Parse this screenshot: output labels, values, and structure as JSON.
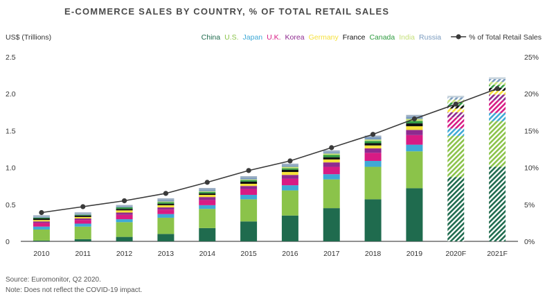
{
  "chart_data": {
    "type": "bar",
    "title": "E-COMMERCE SALES BY COUNTRY, % OF TOTAL RETAIL SALES",
    "ylabel_left": "US$ (Trillions)",
    "ylabel_right": "",
    "ylim_left": [
      0,
      2.5
    ],
    "ylim_right": [
      0,
      25
    ],
    "yticks_left": [
      "0",
      "0.5",
      "1.0",
      "1.5",
      "2.0",
      "2.5"
    ],
    "yticks_right": [
      "0%",
      "5%",
      "10%",
      "15%",
      "20%",
      "25%"
    ],
    "categories": [
      "2010",
      "2011",
      "2012",
      "2013",
      "2014",
      "2015",
      "2016",
      "2017",
      "2018",
      "2019",
      "2020F",
      "2021F"
    ],
    "forecast": [
      false,
      false,
      false,
      false,
      false,
      false,
      false,
      false,
      false,
      false,
      true,
      true
    ],
    "series": [
      {
        "name": "China",
        "color": "#1f6b4e",
        "values": [
          0.01,
          0.03,
          0.06,
          0.1,
          0.18,
          0.27,
          0.35,
          0.45,
          0.57,
          0.72,
          0.87,
          1.01
        ]
      },
      {
        "name": "U.S.",
        "color": "#8bc34a",
        "values": [
          0.15,
          0.17,
          0.2,
          0.22,
          0.26,
          0.3,
          0.34,
          0.39,
          0.44,
          0.5,
          0.56,
          0.62
        ]
      },
      {
        "name": "Japan",
        "color": "#3fa9d6",
        "values": [
          0.04,
          0.04,
          0.04,
          0.05,
          0.05,
          0.06,
          0.07,
          0.07,
          0.08,
          0.09,
          0.1,
          0.11
        ]
      },
      {
        "name": "U.K.",
        "color": "#d81b84",
        "values": [
          0.05,
          0.05,
          0.06,
          0.06,
          0.07,
          0.08,
          0.09,
          0.1,
          0.11,
          0.13,
          0.15,
          0.17
        ]
      },
      {
        "name": "Korea",
        "color": "#8e2a8f",
        "values": [
          0.02,
          0.02,
          0.03,
          0.03,
          0.04,
          0.04,
          0.05,
          0.06,
          0.06,
          0.07,
          0.07,
          0.08
        ]
      },
      {
        "name": "Germany",
        "color": "#f5e13c",
        "values": [
          0.02,
          0.02,
          0.03,
          0.03,
          0.03,
          0.03,
          0.04,
          0.04,
          0.04,
          0.05,
          0.05,
          0.05
        ]
      },
      {
        "name": "France",
        "color": "#111111",
        "values": [
          0.02,
          0.02,
          0.02,
          0.02,
          0.02,
          0.03,
          0.03,
          0.03,
          0.03,
          0.04,
          0.04,
          0.04
        ]
      },
      {
        "name": "Canada",
        "color": "#2e9b3f",
        "values": [
          0.01,
          0.01,
          0.02,
          0.02,
          0.02,
          0.02,
          0.02,
          0.03,
          0.03,
          0.03,
          0.04,
          0.04
        ]
      },
      {
        "name": "India",
        "color": "#c5e07a",
        "values": [
          0.0,
          0.0,
          0.0,
          0.01,
          0.01,
          0.01,
          0.02,
          0.02,
          0.02,
          0.03,
          0.04,
          0.04
        ]
      },
      {
        "name": "Russia",
        "color": "#7a9bbf",
        "values": [
          0.01,
          0.01,
          0.01,
          0.02,
          0.02,
          0.02,
          0.02,
          0.02,
          0.03,
          0.03,
          0.03,
          0.04
        ]
      }
    ],
    "line_series": {
      "name": "% of Total Retail Sales",
      "color": "#3a3a3a",
      "values": [
        3.9,
        4.7,
        5.5,
        6.5,
        8.0,
        9.6,
        10.9,
        12.7,
        14.5,
        16.6,
        18.6,
        20.7
      ]
    },
    "legend_position": "top-right"
  },
  "footer": {
    "source": "Source: Euromonitor, Q2 2020.",
    "note": "Note: Does not reflect the COVID-19 impact."
  }
}
